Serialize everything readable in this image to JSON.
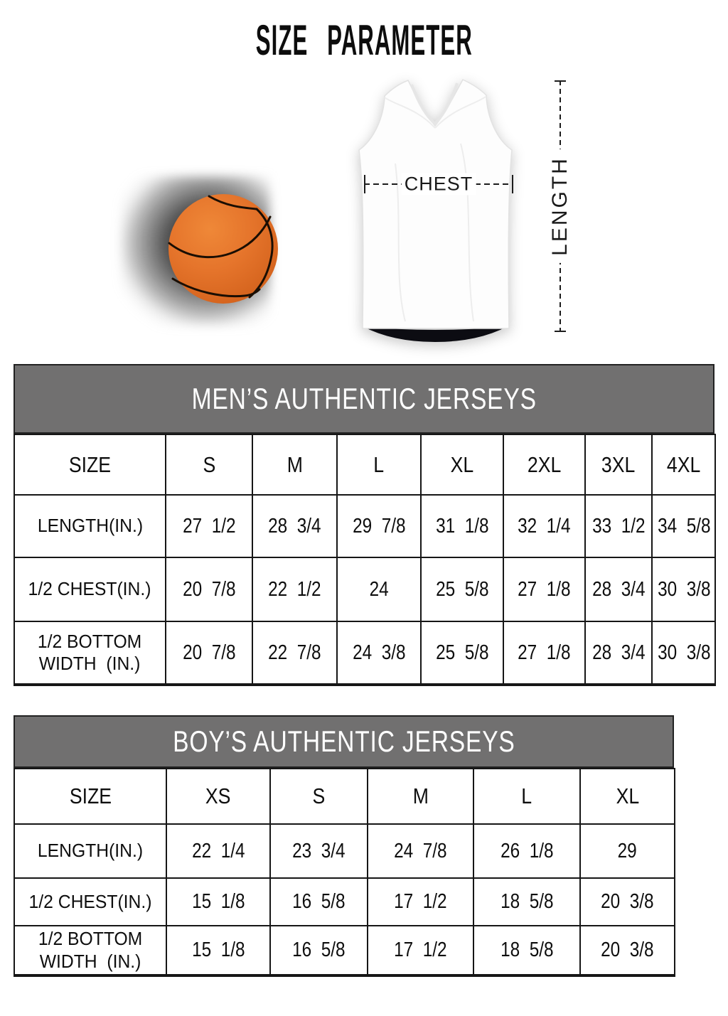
{
  "title": "SIZE PARAMETER",
  "diagram": {
    "chest_label": "CHEST",
    "length_label": "LENGTH",
    "ball_color": "#e5742b",
    "seam_color": "#1a0e03"
  },
  "colors": {
    "header_bar": "#717070",
    "table_border": "#161616",
    "bar_text": "#ffffff"
  },
  "tables": [
    {
      "title": "MEN’S AUTHENTIC JERSEYS",
      "size_header": "SIZE",
      "columns": [
        "S",
        "M",
        "L",
        "XL",
        "2XL",
        "3XL",
        "4XL"
      ],
      "rows": [
        {
          "label": "LENGTH(IN.)",
          "values": [
            "27  1/2",
            "28  3/4",
            "29  7/8",
            "31  1/8",
            "32  1/4",
            "33  1/2",
            "34  5/8"
          ]
        },
        {
          "label": "1/2 CHEST(IN.)",
          "values": [
            "20  7/8",
            "22  1/2",
            "24",
            "25  5/8",
            "27  1/8",
            "28  3/4",
            "30  3/8"
          ]
        },
        {
          "label": "1/2 BOTTOM\nWIDTH  (IN.)",
          "values": [
            "20  7/8",
            "22  7/8",
            "24  3/8",
            "25  5/8",
            "27  1/8",
            "28  3/4",
            "30  3/8"
          ]
        }
      ]
    },
    {
      "title": "BOY’S AUTHENTIC JERSEYS",
      "size_header": "SIZE",
      "columns": [
        "XS",
        "S",
        "M",
        "L",
        "XL"
      ],
      "rows": [
        {
          "label": "LENGTH(IN.)",
          "values": [
            "22  1/4",
            "23  3/4",
            "24  7/8",
            "26  1/8",
            "29"
          ]
        },
        {
          "label": "1/2 CHEST(IN.)",
          "values": [
            "15  1/8",
            "16  5/8",
            "17  1/2",
            "18  5/8",
            "20  3/8"
          ]
        },
        {
          "label": "1/2 BOTTOM\nWIDTH  (IN.)",
          "values": [
            "15  1/8",
            "16  5/8",
            "17  1/2",
            "18  5/8",
            "20  3/8"
          ]
        }
      ]
    }
  ]
}
